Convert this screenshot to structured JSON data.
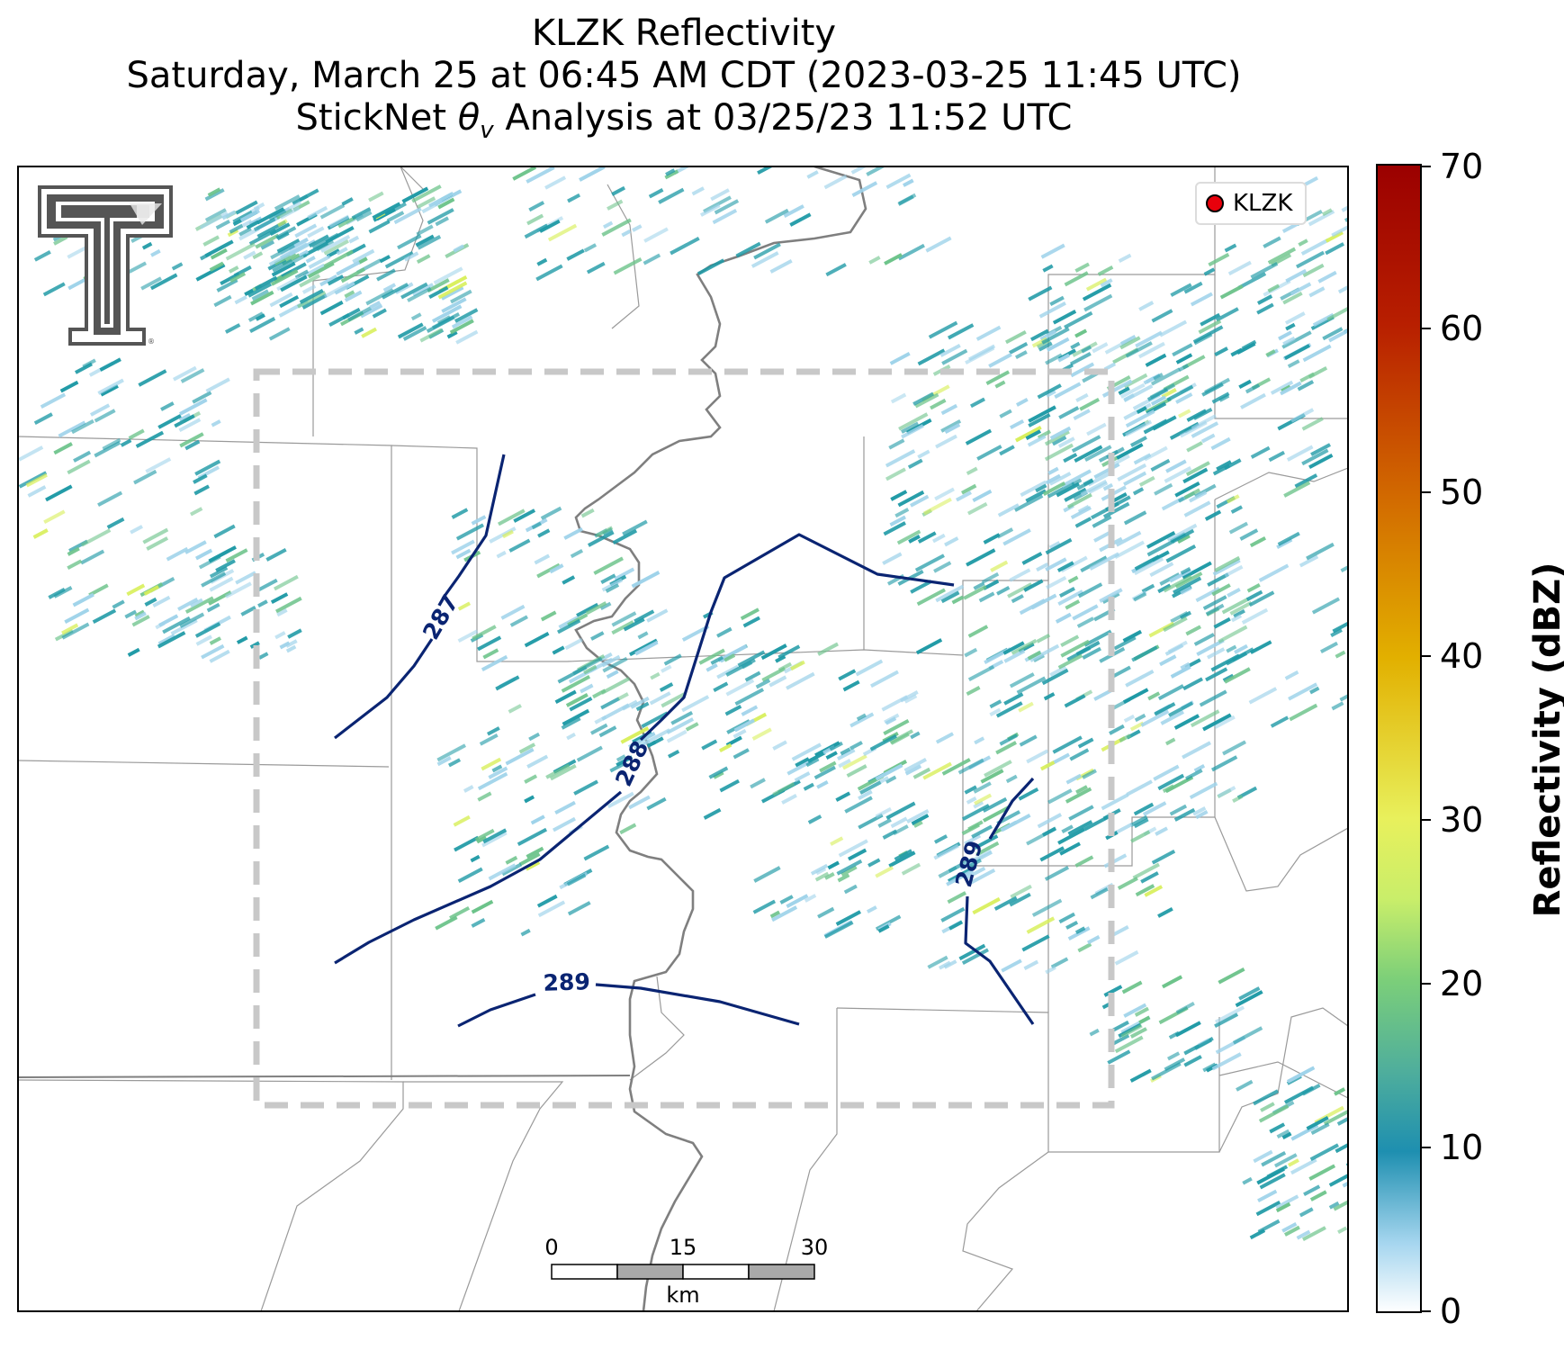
{
  "title": {
    "line1": "KLZK Reflectivity",
    "line2": "Saturday, March 25 at 06:45 AM CDT (2023-03-25 11:45 UTC)",
    "line3_prefix": "StickNet ",
    "line3_symbol": "θ",
    "line3_sub": "v",
    "line3_suffix": " Analysis at 03/25/23 11:52 UTC"
  },
  "legend": {
    "label": "KLZK",
    "marker_color": "#e8000b"
  },
  "scale_bar": {
    "labels": [
      "0",
      "15",
      "30"
    ],
    "unit": "km"
  },
  "colorbar": {
    "label": "Reflectivity (dBZ)",
    "ticks": [
      "0",
      "10",
      "20",
      "30",
      "40",
      "50",
      "60",
      "70"
    ],
    "range": [
      0,
      70
    ],
    "colors": [
      "#ffffff",
      "#1e8fb0",
      "#7ccf79",
      "#e6f05c",
      "#e2b000",
      "#d26a00",
      "#b81f00",
      "#9b0000"
    ]
  },
  "contours": [
    {
      "value": "287",
      "color": "#0a2472"
    },
    {
      "value": "288",
      "color": "#0a2472"
    },
    {
      "value": "289",
      "color": "#0a2472"
    },
    {
      "value": "289",
      "color": "#0a2472"
    }
  ],
  "colors": {
    "echo_teal": "#1f9aa6",
    "echo_light": "#9fd3ea",
    "echo_green": "#6cc38a",
    "echo_yellow": "#d8ef5a",
    "river": "#7f7f7f",
    "county": "#9a9a9a",
    "analysis_box": "#c8c8c8"
  },
  "logo": {
    "name": "Texas Tech Double T"
  }
}
